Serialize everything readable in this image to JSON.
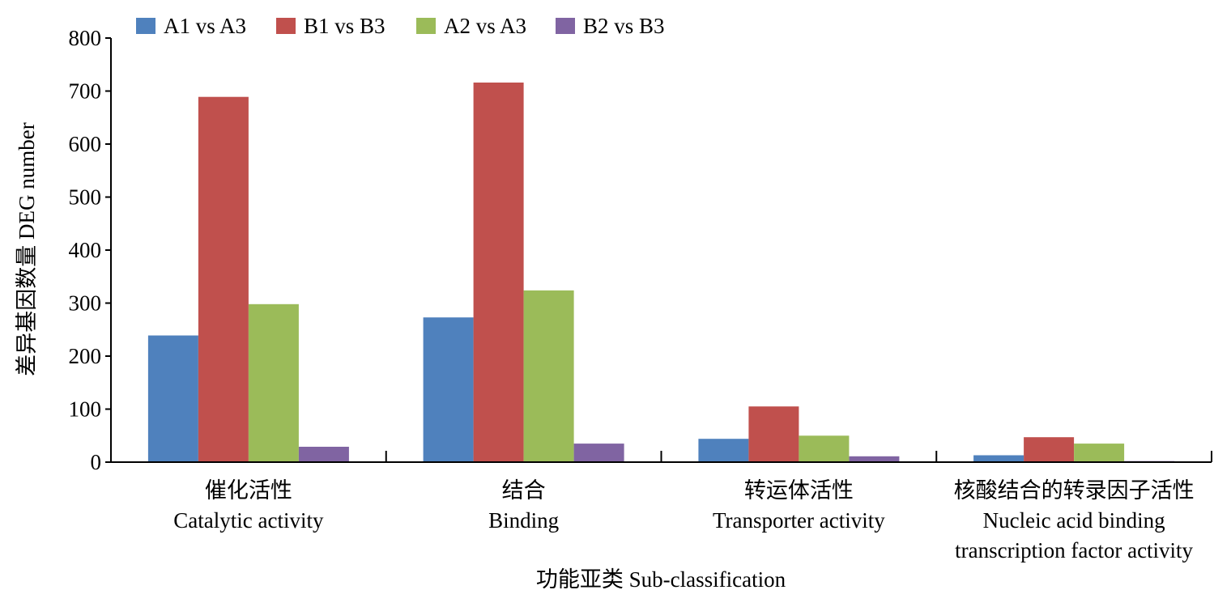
{
  "chart_data": {
    "type": "bar",
    "xlabel": "功能亚类 Sub-classification",
    "ylabel": "差异基因数量 DEG number",
    "ylim": [
      0,
      800
    ],
    "yticks": [
      0,
      100,
      200,
      300,
      400,
      500,
      600,
      700,
      800
    ],
    "grid": false,
    "legend_position": "top-left",
    "categories": [
      {
        "lines": [
          "催化活性",
          "Catalytic activity"
        ]
      },
      {
        "lines": [
          "结合",
          "Binding"
        ]
      },
      {
        "lines": [
          "转运体活性",
          "Transporter activity"
        ]
      },
      {
        "lines": [
          "核酸结合的转录因子活性",
          "Nucleic acid binding",
          "transcription factor activity"
        ]
      }
    ],
    "series": [
      {
        "name": "A1 vs A3",
        "color": "#4f81bd",
        "values": [
          239,
          273,
          44,
          13
        ]
      },
      {
        "name": "B1 vs B3",
        "color": "#c0504d",
        "values": [
          689,
          716,
          105,
          47
        ]
      },
      {
        "name": "A2 vs A3",
        "color": "#9bbb59",
        "values": [
          298,
          324,
          50,
          35
        ]
      },
      {
        "name": "B2 vs B3",
        "color": "#8064a2",
        "values": [
          29,
          35,
          11,
          2
        ]
      }
    ]
  }
}
